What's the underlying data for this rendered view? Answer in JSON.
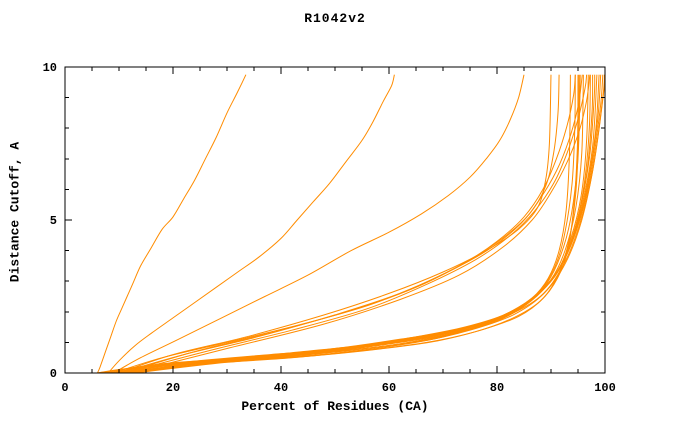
{
  "chart_data": {
    "type": "line",
    "title": "R1042v2",
    "xlabel": "Percent of Residues (CA)",
    "ylabel": "Distance Cutoff, A",
    "xlim": [
      0,
      100
    ],
    "ylim": [
      0,
      10
    ],
    "x_major_ticks": [
      0,
      20,
      40,
      60,
      80,
      100
    ],
    "x_minor_step": 5,
    "y_major_ticks": [
      0,
      5,
      10
    ],
    "y_minor_step": 1,
    "grid": "off",
    "legend": "none",
    "line_color": "#ff8c00",
    "frame_color": "#000000",
    "background": "#ffffff",
    "series": [
      [
        [
          6,
          0
        ],
        [
          6.5,
          0.2
        ],
        [
          7.5,
          0.7
        ],
        [
          8.5,
          1.2
        ],
        [
          9.5,
          1.7
        ],
        [
          10.5,
          2.1
        ],
        [
          11.5,
          2.5
        ],
        [
          12.5,
          2.9
        ],
        [
          14,
          3.5
        ],
        [
          16,
          4.1
        ],
        [
          18,
          4.7
        ],
        [
          20,
          5.1
        ],
        [
          22,
          5.7
        ],
        [
          24,
          6.3
        ],
        [
          26,
          7.0
        ],
        [
          28,
          7.7
        ],
        [
          30,
          8.5
        ],
        [
          32,
          9.2
        ],
        [
          33.5,
          9.75
        ]
      ],
      [
        [
          8,
          0
        ],
        [
          10,
          0.4
        ],
        [
          13,
          0.9
        ],
        [
          16,
          1.3
        ],
        [
          20,
          1.8
        ],
        [
          24,
          2.3
        ],
        [
          28,
          2.8
        ],
        [
          32,
          3.3
        ],
        [
          36,
          3.8
        ],
        [
          40,
          4.4
        ],
        [
          43,
          5.0
        ],
        [
          46,
          5.6
        ],
        [
          49,
          6.2
        ],
        [
          52,
          6.9
        ],
        [
          55,
          7.6
        ],
        [
          57,
          8.2
        ],
        [
          59,
          8.9
        ],
        [
          60.5,
          9.4
        ],
        [
          61,
          9.75
        ]
      ],
      [
        [
          9,
          0
        ],
        [
          14,
          0.5
        ],
        [
          21,
          1.1
        ],
        [
          29,
          1.8
        ],
        [
          37,
          2.5
        ],
        [
          45,
          3.2
        ],
        [
          53,
          4.0
        ],
        [
          60,
          4.6
        ],
        [
          66,
          5.2
        ],
        [
          71,
          5.8
        ],
        [
          75,
          6.4
        ],
        [
          78,
          7.0
        ],
        [
          80.5,
          7.6
        ],
        [
          82.5,
          8.3
        ],
        [
          84,
          9.0
        ],
        [
          85,
          9.75
        ]
      ],
      [
        [
          10,
          0
        ],
        [
          20,
          0.6
        ],
        [
          34,
          1.2
        ],
        [
          48,
          1.9
        ],
        [
          60,
          2.6
        ],
        [
          70,
          3.3
        ],
        [
          78,
          4.0
        ],
        [
          84,
          4.7
        ],
        [
          87.5,
          5.4
        ],
        [
          89,
          6.3
        ],
        [
          89.7,
          7.5
        ],
        [
          90,
          9.75
        ]
      ],
      [
        [
          11,
          0
        ],
        [
          24,
          0.7
        ],
        [
          40,
          1.4
        ],
        [
          54,
          2.1
        ],
        [
          65,
          2.8
        ],
        [
          74,
          3.6
        ],
        [
          81,
          4.4
        ],
        [
          86,
          5.2
        ],
        [
          89,
          6.1
        ],
        [
          90.5,
          7.2
        ],
        [
          91.3,
          8.5
        ],
        [
          91.5,
          9.75
        ]
      ],
      [
        [
          9,
          0
        ],
        [
          18,
          0.5
        ],
        [
          30,
          1.0
        ],
        [
          44,
          1.6
        ],
        [
          56,
          2.2
        ],
        [
          66,
          2.9
        ],
        [
          74,
          3.6
        ],
        [
          80,
          4.3
        ],
        [
          85,
          5.1
        ],
        [
          88.5,
          6.0
        ],
        [
          91,
          7.0
        ],
        [
          93,
          8.1
        ],
        [
          94.2,
          9.1
        ],
        [
          94.5,
          9.75
        ]
      ],
      [
        [
          10,
          0
        ],
        [
          22,
          0.6
        ],
        [
          36,
          1.2
        ],
        [
          50,
          1.9
        ],
        [
          62,
          2.6
        ],
        [
          72,
          3.4
        ],
        [
          79,
          4.1
        ],
        [
          84.5,
          4.9
        ],
        [
          88,
          5.7
        ],
        [
          91,
          6.6
        ],
        [
          93.3,
          7.6
        ],
        [
          95,
          8.7
        ],
        [
          95.8,
          9.75
        ]
      ],
      [
        [
          11,
          0
        ],
        [
          26,
          0.7
        ],
        [
          42,
          1.4
        ],
        [
          56,
          2.1
        ],
        [
          67,
          2.9
        ],
        [
          76,
          3.7
        ],
        [
          82.5,
          4.5
        ],
        [
          87,
          5.3
        ],
        [
          90.5,
          6.2
        ],
        [
          93,
          7.2
        ],
        [
          95,
          8.3
        ],
        [
          96.3,
          9.3
        ],
        [
          96.6,
          9.75
        ]
      ],
      [
        [
          12,
          0
        ],
        [
          30,
          0.8
        ],
        [
          48,
          1.6
        ],
        [
          62,
          2.4
        ],
        [
          73,
          3.2
        ],
        [
          81,
          4.1
        ],
        [
          86.5,
          5.0
        ],
        [
          90,
          5.9
        ],
        [
          93,
          6.9
        ],
        [
          95.2,
          7.9
        ],
        [
          96.6,
          8.9
        ],
        [
          97.2,
          9.75
        ]
      ],
      [
        [
          6,
          0
        ],
        [
          15,
          0.2
        ],
        [
          30,
          0.4
        ],
        [
          45,
          0.6
        ],
        [
          58,
          0.85
        ],
        [
          68,
          1.1
        ],
        [
          76,
          1.5
        ],
        [
          82,
          1.95
        ],
        [
          86.5,
          2.45
        ],
        [
          89.5,
          3.1
        ],
        [
          91.5,
          4.0
        ],
        [
          92.8,
          5.3
        ],
        [
          93.4,
          7.1
        ],
        [
          93.6,
          9.75
        ]
      ],
      [
        [
          7,
          0
        ],
        [
          16,
          0.25
        ],
        [
          32,
          0.45
        ],
        [
          47,
          0.65
        ],
        [
          60,
          0.9
        ],
        [
          70,
          1.2
        ],
        [
          78,
          1.6
        ],
        [
          84,
          2.1
        ],
        [
          88,
          2.7
        ],
        [
          90.8,
          3.5
        ],
        [
          92.6,
          4.6
        ],
        [
          93.9,
          6.2
        ],
        [
          94.4,
          8.0
        ],
        [
          94.5,
          9.75
        ]
      ],
      [
        [
          7,
          0
        ],
        [
          18,
          0.3
        ],
        [
          34,
          0.5
        ],
        [
          49,
          0.7
        ],
        [
          62,
          1.0
        ],
        [
          72,
          1.3
        ],
        [
          80,
          1.7
        ],
        [
          85.5,
          2.25
        ],
        [
          89.3,
          2.95
        ],
        [
          91.8,
          3.85
        ],
        [
          93.6,
          5.0
        ],
        [
          94.9,
          6.8
        ],
        [
          95.3,
          8.6
        ],
        [
          95.4,
          9.75
        ]
      ],
      [
        [
          8,
          0
        ],
        [
          20,
          0.3
        ],
        [
          36,
          0.55
        ],
        [
          51,
          0.75
        ],
        [
          63,
          1.05
        ],
        [
          73,
          1.4
        ],
        [
          81,
          1.8
        ],
        [
          86.3,
          2.35
        ],
        [
          90,
          3.05
        ],
        [
          92.6,
          4.0
        ],
        [
          94.6,
          5.4
        ],
        [
          95.7,
          7.2
        ],
        [
          96,
          9.75
        ]
      ],
      [
        [
          8,
          0
        ],
        [
          22,
          0.35
        ],
        [
          38,
          0.6
        ],
        [
          53,
          0.8
        ],
        [
          65,
          1.1
        ],
        [
          75,
          1.45
        ],
        [
          82.3,
          1.95
        ],
        [
          87.3,
          2.55
        ],
        [
          91,
          3.25
        ],
        [
          93.6,
          4.35
        ],
        [
          95.6,
          5.8
        ],
        [
          96.6,
          7.6
        ],
        [
          96.9,
          9.75
        ]
      ],
      [
        [
          9,
          0
        ],
        [
          24,
          0.35
        ],
        [
          40,
          0.6
        ],
        [
          55,
          0.85
        ],
        [
          66,
          1.15
        ],
        [
          76,
          1.5
        ],
        [
          83,
          2.0
        ],
        [
          88,
          2.65
        ],
        [
          91.7,
          3.45
        ],
        [
          94.2,
          4.55
        ],
        [
          96.1,
          6.1
        ],
        [
          97.1,
          8.0
        ],
        [
          97.3,
          9.75
        ]
      ],
      [
        [
          9,
          0
        ],
        [
          26,
          0.4
        ],
        [
          42,
          0.65
        ],
        [
          56,
          0.9
        ],
        [
          67,
          1.2
        ],
        [
          77,
          1.6
        ],
        [
          84,
          2.15
        ],
        [
          89,
          2.85
        ],
        [
          92.2,
          3.65
        ],
        [
          94.7,
          4.85
        ],
        [
          96.6,
          6.5
        ],
        [
          97.6,
          8.5
        ],
        [
          97.7,
          9.75
        ]
      ],
      [
        [
          10,
          0
        ],
        [
          28,
          0.4
        ],
        [
          44,
          0.7
        ],
        [
          58,
          0.95
        ],
        [
          69,
          1.25
        ],
        [
          78,
          1.65
        ],
        [
          85,
          2.2
        ],
        [
          89.7,
          2.95
        ],
        [
          92.7,
          3.85
        ],
        [
          95.1,
          5.15
        ],
        [
          97.1,
          7.0
        ],
        [
          98,
          9.0
        ],
        [
          98.1,
          9.75
        ]
      ],
      [
        [
          10,
          0
        ],
        [
          30,
          0.45
        ],
        [
          46,
          0.7
        ],
        [
          60,
          1.0
        ],
        [
          70,
          1.3
        ],
        [
          79,
          1.7
        ],
        [
          85.7,
          2.3
        ],
        [
          90.2,
          3.05
        ],
        [
          93.2,
          4.05
        ],
        [
          95.7,
          5.45
        ],
        [
          97.7,
          7.4
        ],
        [
          98.5,
          9.75
        ]
      ],
      [
        [
          11,
          0
        ],
        [
          32,
          0.45
        ],
        [
          48,
          0.75
        ],
        [
          61,
          1.05
        ],
        [
          71,
          1.35
        ],
        [
          80,
          1.8
        ],
        [
          86.2,
          2.4
        ],
        [
          90.7,
          3.15
        ],
        [
          93.7,
          4.25
        ],
        [
          96.2,
          5.7
        ],
        [
          98.2,
          7.8
        ],
        [
          98.9,
          9.75
        ]
      ],
      [
        [
          11,
          0
        ],
        [
          34,
          0.5
        ],
        [
          50,
          0.8
        ],
        [
          62,
          1.1
        ],
        [
          72,
          1.4
        ],
        [
          81,
          1.85
        ],
        [
          87,
          2.5
        ],
        [
          91.2,
          3.3
        ],
        [
          94.2,
          4.45
        ],
        [
          96.7,
          6.0
        ],
        [
          98.6,
          8.2
        ],
        [
          99.2,
          9.75
        ]
      ],
      [
        [
          12,
          0
        ],
        [
          36,
          0.5
        ],
        [
          52,
          0.8
        ],
        [
          64,
          1.15
        ],
        [
          74,
          1.5
        ],
        [
          82,
          1.95
        ],
        [
          87.7,
          2.6
        ],
        [
          91.7,
          3.45
        ],
        [
          94.7,
          4.65
        ],
        [
          97.2,
          6.3
        ],
        [
          99.1,
          8.6
        ],
        [
          99.6,
          9.75
        ]
      ],
      [
        [
          12,
          0
        ],
        [
          25,
          0.3
        ],
        [
          45,
          0.6
        ],
        [
          60,
          0.9
        ],
        [
          72,
          1.3
        ],
        [
          81,
          1.8
        ],
        [
          88,
          2.5
        ],
        [
          92.2,
          3.5
        ],
        [
          95.2,
          4.8
        ],
        [
          97.7,
          6.6
        ],
        [
          99.6,
          9.0
        ],
        [
          99.9,
          9.75
        ]
      ],
      [
        [
          13,
          0
        ],
        [
          30,
          0.35
        ],
        [
          50,
          0.65
        ],
        [
          65,
          1.0
        ],
        [
          75,
          1.4
        ],
        [
          83,
          1.9
        ],
        [
          88.7,
          2.6
        ],
        [
          92.7,
          3.6
        ],
        [
          95.7,
          5.0
        ],
        [
          98.1,
          7.0
        ],
        [
          99.9,
          9.4
        ],
        [
          100,
          9.75
        ]
      ],
      [
        [
          6,
          0
        ],
        [
          12,
          0.15
        ],
        [
          25,
          0.3
        ],
        [
          42,
          0.5
        ],
        [
          56,
          0.75
        ],
        [
          67,
          1.0
        ],
        [
          76,
          1.35
        ],
        [
          83,
          1.8
        ],
        [
          88,
          2.35
        ],
        [
          91.2,
          3.1
        ],
        [
          93.2,
          4.1
        ],
        [
          94.3,
          5.6
        ],
        [
          94.9,
          7.5
        ],
        [
          95,
          9.75
        ]
      ],
      [
        [
          7,
          0
        ],
        [
          14,
          0.2
        ],
        [
          28,
          0.35
        ],
        [
          45,
          0.55
        ],
        [
          59,
          0.8
        ],
        [
          69,
          1.05
        ],
        [
          77,
          1.4
        ],
        [
          84,
          1.85
        ],
        [
          88.6,
          2.45
        ],
        [
          91.3,
          3.2
        ],
        [
          93.3,
          4.3
        ],
        [
          94.6,
          5.9
        ],
        [
          95.1,
          7.8
        ],
        [
          95.2,
          9.75
        ]
      ]
    ]
  }
}
